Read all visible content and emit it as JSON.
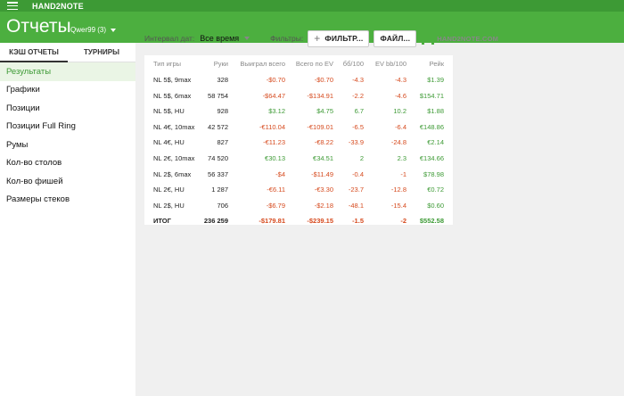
{
  "app": {
    "title": "HAND2NOTE"
  },
  "header": {
    "title": "Отчеты",
    "user": "Qwer99 (3)"
  },
  "colors": {
    "accent": "#4caf3f",
    "negative": "#d64a1e",
    "positive": "#3d9a35"
  },
  "sidebar": {
    "tabs": [
      {
        "label": "КЭШ ОТЧЕТЫ"
      },
      {
        "label": "ТУРНИРЫ"
      }
    ],
    "items": [
      {
        "label": "Результаты"
      },
      {
        "label": "Графики"
      },
      {
        "label": "Позиции"
      },
      {
        "label": "Позиции Full Ring"
      },
      {
        "label": "Румы"
      },
      {
        "label": "Кол-во столов"
      },
      {
        "label": "Кол-во фишей"
      },
      {
        "label": "Размеры стеков"
      }
    ]
  },
  "filters": {
    "period_label": "Интервал дат:",
    "period_value": "Все время",
    "filters_label": "Фильтры:",
    "add_filter": "ФИЛЬТР...",
    "file": "ФАЙЛ...",
    "brand": "HAND2NOTE.COM"
  },
  "table": {
    "columns": [
      "Тип игры",
      "Руки",
      "Выиграл всего",
      "Всего по EV",
      "бб/100",
      "EV bb/100",
      "Рейк"
    ],
    "rows": [
      {
        "game": "NL 5$, 9max",
        "hands": "328",
        "won": "-$0.70",
        "ev": "-$0.70",
        "bb": "-4.3",
        "evbb": "-4.3",
        "rake": "$1.39"
      },
      {
        "game": "NL 5$, 6max",
        "hands": "58 754",
        "won": "-$64.47",
        "ev": "-$134.91",
        "bb": "-2.2",
        "evbb": "-4.6",
        "rake": "$154.71"
      },
      {
        "game": "NL 5$, HU",
        "hands": "928",
        "won": "$3.12",
        "ev": "$4.75",
        "bb": "6.7",
        "evbb": "10.2",
        "rake": "$1.88"
      },
      {
        "game": "NL 4€, 10max",
        "hands": "42 572",
        "won": "-€110.04",
        "ev": "-€109.01",
        "bb": "-6.5",
        "evbb": "-6.4",
        "rake": "€148.86"
      },
      {
        "game": "NL 4€, HU",
        "hands": "827",
        "won": "-€11.23",
        "ev": "-€8.22",
        "bb": "-33.9",
        "evbb": "-24.8",
        "rake": "€2.14"
      },
      {
        "game": "NL 2€, 10max",
        "hands": "74 520",
        "won": "€30.13",
        "ev": "€34.51",
        "bb": "2",
        "evbb": "2.3",
        "rake": "€134.66"
      },
      {
        "game": "NL 2$, 6max",
        "hands": "56 337",
        "won": "-$4",
        "ev": "-$11.49",
        "bb": "-0.4",
        "evbb": "-1",
        "rake": "$78.98"
      },
      {
        "game": "NL 2€, HU",
        "hands": "1 287",
        "won": "-€6.11",
        "ev": "-€3.30",
        "bb": "-23.7",
        "evbb": "-12.8",
        "rake": "€0.72"
      },
      {
        "game": "NL 2$, HU",
        "hands": "706",
        "won": "-$6.79",
        "ev": "-$2.18",
        "bb": "-48.1",
        "evbb": "-15.4",
        "rake": "$0.60"
      }
    ],
    "total": {
      "game": "ИТОГ",
      "hands": "236 259",
      "won": "-$179.81",
      "ev": "-$239.15",
      "bb": "-1.5",
      "evbb": "-2",
      "rake": "$552.58"
    }
  }
}
